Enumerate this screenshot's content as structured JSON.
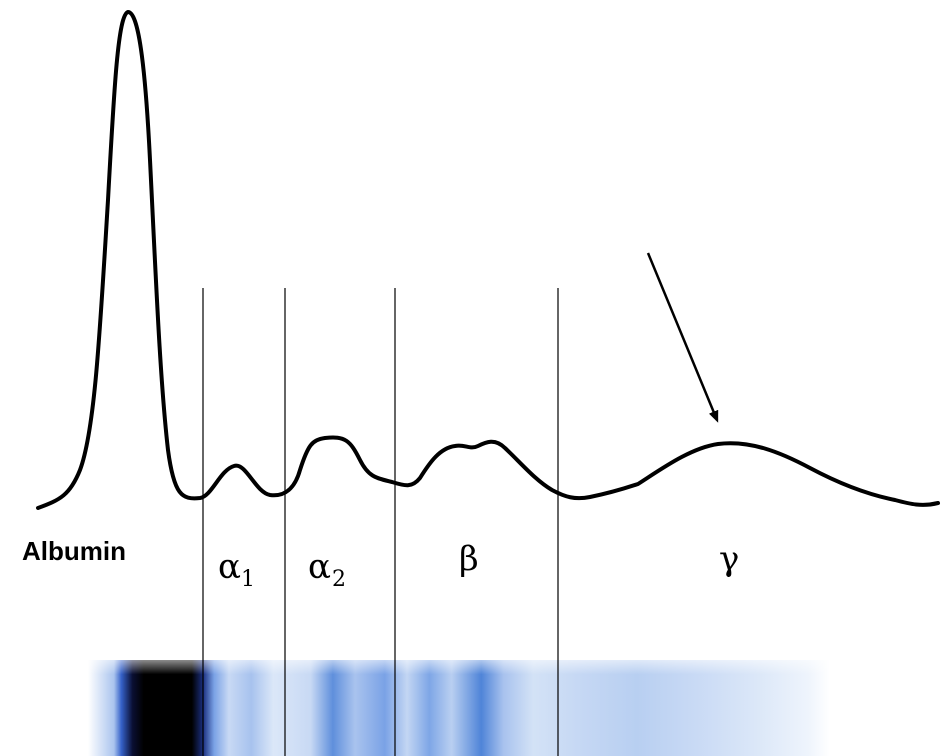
{
  "labels": {
    "albumin": "Albumin",
    "alpha1_symbol": "α",
    "alpha1_subscript": "1",
    "alpha2_symbol": "α",
    "alpha2_subscript": "2",
    "beta": "β",
    "gamma": "γ"
  },
  "colors": {
    "curve": "#000000",
    "divider": "#000000",
    "arrow": "#000000",
    "gel_background": "#ffffff",
    "gel_light_blue": "#d6e4f6",
    "gel_mid_blue": "#7ea6e3",
    "gel_strong_blue": "#3a6fd0",
    "gel_dark_band": "#000000"
  },
  "icons": {
    "arrow": "arrow-down-right-icon"
  }
}
